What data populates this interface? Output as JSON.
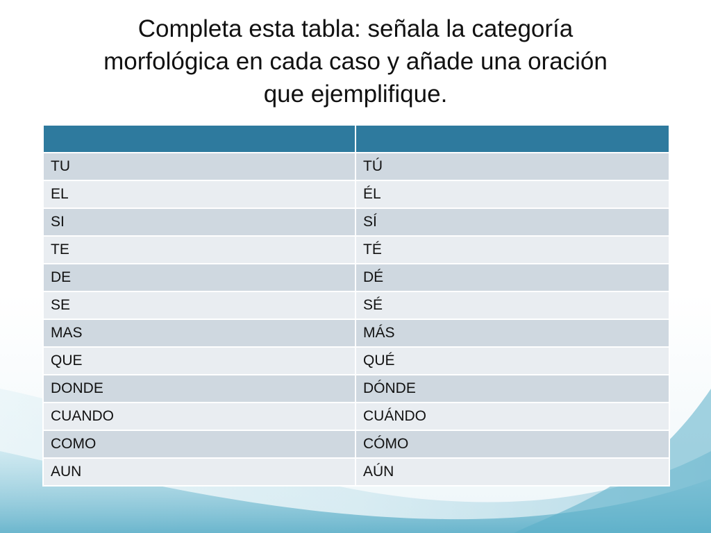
{
  "slide": {
    "title_line1": "Completa esta tabla: señala la categoría",
    "title_line2": "morfológica en cada caso y añade una oración",
    "title_line3": "que ejemplifique."
  },
  "table": {
    "headers": [
      "",
      ""
    ],
    "rows": [
      [
        "TU",
        "TÚ"
      ],
      [
        "EL",
        "ÉL"
      ],
      [
        "SI",
        "SÍ"
      ],
      [
        "TE",
        "TÉ"
      ],
      [
        "DE",
        "DÉ"
      ],
      [
        "SE",
        "SÉ"
      ],
      [
        "MAS",
        "MÁS"
      ],
      [
        "QUE",
        "QUÉ"
      ],
      [
        "DONDE",
        "DÓNDE"
      ],
      [
        "CUANDO",
        "CUÁNDO"
      ],
      [
        "COMO",
        "CÓMO"
      ],
      [
        "AUN",
        "AÚN"
      ]
    ],
    "header_color": "#2e7a9e",
    "row_color_odd": "#cfd8e0",
    "row_color_even": "#e9edf1"
  },
  "theme": {
    "background_accent": "#7fc0d4"
  }
}
